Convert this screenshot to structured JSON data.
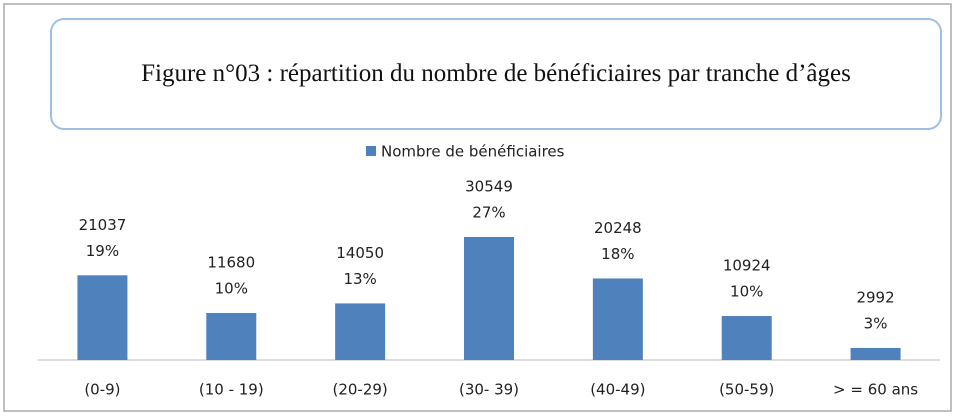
{
  "chart_data": {
    "type": "bar",
    "title": "Figure n°03 : répartition du nombre de bénéficiaires par tranche d’âges",
    "categories": [
      "(0-9)",
      "(10 - 19)",
      "(20-29)",
      "(30- 39)",
      "(40-49)",
      "(50-59)",
      "> = 60 ans"
    ],
    "series": [
      {
        "name": "Nombre de bénéficiaires",
        "color": "#4f81bd",
        "values": [
          21037,
          11680,
          14050,
          30549,
          20248,
          10924,
          2992
        ],
        "percent_labels": [
          "19%",
          "10%",
          "13%",
          "27%",
          "18%",
          "10%",
          "3%"
        ]
      }
    ]
  }
}
